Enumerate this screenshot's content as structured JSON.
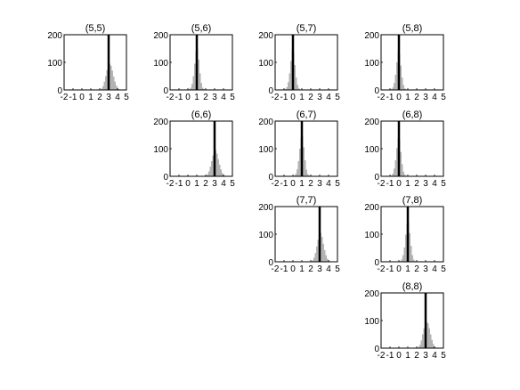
{
  "chart_data": [
    {
      "type": "histogram",
      "title": "(5,5)",
      "xlim": [
        -2,
        5
      ],
      "ylim": [
        0,
        200
      ],
      "xticks": [
        -2,
        -1,
        0,
        1,
        2,
        3,
        4,
        5
      ],
      "yticks": [
        0,
        100,
        200
      ],
      "reference_line": 3.0,
      "bins": [
        [
          2.0,
          2.15,
          2
        ],
        [
          2.15,
          2.3,
          5
        ],
        [
          2.3,
          2.45,
          14
        ],
        [
          2.45,
          2.6,
          30
        ],
        [
          2.6,
          2.75,
          50
        ],
        [
          2.75,
          2.9,
          72
        ],
        [
          2.9,
          3.05,
          88
        ],
        [
          3.05,
          3.2,
          95
        ],
        [
          3.2,
          3.35,
          88
        ],
        [
          3.35,
          3.5,
          70
        ],
        [
          3.5,
          3.65,
          48
        ],
        [
          3.65,
          3.8,
          30
        ],
        [
          3.8,
          3.95,
          16
        ],
        [
          3.95,
          4.1,
          8
        ],
        [
          4.1,
          4.25,
          3
        ]
      ]
    },
    {
      "type": "histogram",
      "title": "(5,6)",
      "xlim": [
        -2,
        5
      ],
      "ylim": [
        0,
        200
      ],
      "xticks": [
        -2,
        -1,
        0,
        1,
        2,
        3,
        4,
        5
      ],
      "yticks": [
        0,
        100,
        200
      ],
      "reference_line": 1.0,
      "bins": [
        [
          0.1,
          0.25,
          3
        ],
        [
          0.25,
          0.4,
          8
        ],
        [
          0.4,
          0.55,
          22
        ],
        [
          0.55,
          0.7,
          50
        ],
        [
          0.7,
          0.85,
          95
        ],
        [
          0.85,
          1.0,
          140
        ],
        [
          1.0,
          1.15,
          150
        ],
        [
          1.15,
          1.3,
          110
        ],
        [
          1.3,
          1.45,
          60
        ],
        [
          1.45,
          1.6,
          25
        ],
        [
          1.6,
          1.75,
          8
        ],
        [
          1.75,
          1.9,
          3
        ]
      ]
    },
    {
      "type": "histogram",
      "title": "(5,7)",
      "xlim": [
        -2,
        5
      ],
      "ylim": [
        0,
        200
      ],
      "xticks": [
        -2,
        -1,
        0,
        1,
        2,
        3,
        4,
        5
      ],
      "yticks": [
        0,
        100,
        200
      ],
      "reference_line": 0.0,
      "bins": [
        [
          -0.9,
          -0.75,
          3
        ],
        [
          -0.75,
          -0.6,
          10
        ],
        [
          -0.6,
          -0.45,
          28
        ],
        [
          -0.45,
          -0.3,
          60
        ],
        [
          -0.3,
          -0.15,
          105
        ],
        [
          -0.15,
          0.0,
          145
        ],
        [
          0.0,
          0.15,
          135
        ],
        [
          0.15,
          0.3,
          90
        ],
        [
          0.3,
          0.45,
          45
        ],
        [
          0.45,
          0.6,
          18
        ],
        [
          0.6,
          0.75,
          6
        ],
        [
          0.75,
          0.9,
          2
        ]
      ]
    },
    {
      "type": "histogram",
      "title": "(5,8)",
      "xlim": [
        -2,
        5
      ],
      "ylim": [
        0,
        200
      ],
      "xticks": [
        -2,
        -1,
        0,
        1,
        2,
        3,
        4,
        5
      ],
      "yticks": [
        0,
        100,
        200
      ],
      "reference_line": 0.0,
      "bins": [
        [
          -0.9,
          -0.75,
          3
        ],
        [
          -0.75,
          -0.6,
          9
        ],
        [
          -0.6,
          -0.45,
          25
        ],
        [
          -0.45,
          -0.3,
          55
        ],
        [
          -0.3,
          -0.15,
          100
        ],
        [
          -0.15,
          0.0,
          140
        ],
        [
          0.0,
          0.15,
          130
        ],
        [
          0.15,
          0.3,
          88
        ],
        [
          0.3,
          0.45,
          45
        ],
        [
          0.45,
          0.6,
          18
        ],
        [
          0.6,
          0.75,
          6
        ],
        [
          0.75,
          0.9,
          2
        ]
      ]
    },
    {
      "type": "histogram",
      "title": "(6,6)",
      "xlim": [
        -2,
        5
      ],
      "ylim": [
        0,
        200
      ],
      "xticks": [
        -2,
        -1,
        0,
        1,
        2,
        3,
        4,
        5
      ],
      "yticks": [
        0,
        100,
        200
      ],
      "reference_line": 3.0,
      "bins": [
        [
          2.0,
          2.15,
          3
        ],
        [
          2.15,
          2.3,
          8
        ],
        [
          2.3,
          2.45,
          18
        ],
        [
          2.45,
          2.6,
          35
        ],
        [
          2.6,
          2.75,
          55
        ],
        [
          2.75,
          2.9,
          75
        ],
        [
          2.9,
          3.05,
          92
        ],
        [
          3.05,
          3.2,
          95
        ],
        [
          3.2,
          3.35,
          82
        ],
        [
          3.35,
          3.5,
          62
        ],
        [
          3.5,
          3.65,
          42
        ],
        [
          3.65,
          3.8,
          25
        ],
        [
          3.8,
          3.95,
          12
        ],
        [
          3.95,
          4.1,
          5
        ],
        [
          4.1,
          4.25,
          2
        ]
      ]
    },
    {
      "type": "histogram",
      "title": "(6,7)",
      "xlim": [
        -2,
        5
      ],
      "ylim": [
        0,
        200
      ],
      "xticks": [
        -2,
        -1,
        0,
        1,
        2,
        3,
        4,
        5
      ],
      "yticks": [
        0,
        100,
        200
      ],
      "reference_line": 1.0,
      "bins": [
        [
          0.1,
          0.25,
          3
        ],
        [
          0.25,
          0.4,
          9
        ],
        [
          0.4,
          0.55,
          25
        ],
        [
          0.55,
          0.7,
          55
        ],
        [
          0.7,
          0.85,
          100
        ],
        [
          0.85,
          1.0,
          140
        ],
        [
          1.0,
          1.15,
          145
        ],
        [
          1.15,
          1.3,
          105
        ],
        [
          1.3,
          1.45,
          58
        ],
        [
          1.45,
          1.6,
          24
        ],
        [
          1.6,
          1.75,
          8
        ],
        [
          1.75,
          1.9,
          3
        ]
      ]
    },
    {
      "type": "histogram",
      "title": "(6,8)",
      "xlim": [
        -2,
        5
      ],
      "ylim": [
        0,
        200
      ],
      "xticks": [
        -2,
        -1,
        0,
        1,
        2,
        3,
        4,
        5
      ],
      "yticks": [
        0,
        100,
        200
      ],
      "reference_line": 0.0,
      "bins": [
        [
          -0.9,
          -0.75,
          3
        ],
        [
          -0.75,
          -0.6,
          10
        ],
        [
          -0.6,
          -0.45,
          28
        ],
        [
          -0.45,
          -0.3,
          58
        ],
        [
          -0.3,
          -0.15,
          102
        ],
        [
          -0.15,
          0.0,
          138
        ],
        [
          0.0,
          0.15,
          132
        ],
        [
          0.15,
          0.3,
          88
        ],
        [
          0.3,
          0.45,
          44
        ],
        [
          0.45,
          0.6,
          17
        ],
        [
          0.6,
          0.75,
          6
        ],
        [
          0.75,
          0.9,
          2
        ]
      ]
    },
    {
      "type": "histogram",
      "title": "(7,7)",
      "xlim": [
        -2,
        5
      ],
      "ylim": [
        0,
        200
      ],
      "xticks": [
        -2,
        -1,
        0,
        1,
        2,
        3,
        4,
        5
      ],
      "yticks": [
        0,
        100,
        200
      ],
      "reference_line": 3.0,
      "bins": [
        [
          2.0,
          2.15,
          2
        ],
        [
          2.15,
          2.3,
          6
        ],
        [
          2.3,
          2.45,
          15
        ],
        [
          2.45,
          2.6,
          32
        ],
        [
          2.6,
          2.75,
          55
        ],
        [
          2.75,
          2.9,
          80
        ],
        [
          2.9,
          3.05,
          100
        ],
        [
          3.05,
          3.2,
          105
        ],
        [
          3.2,
          3.35,
          90
        ],
        [
          3.35,
          3.5,
          65
        ],
        [
          3.5,
          3.65,
          42
        ],
        [
          3.65,
          3.8,
          24
        ],
        [
          3.8,
          3.95,
          11
        ],
        [
          3.95,
          4.1,
          5
        ],
        [
          4.1,
          4.25,
          2
        ]
      ]
    },
    {
      "type": "histogram",
      "title": "(7,8)",
      "xlim": [
        -2,
        5
      ],
      "ylim": [
        0,
        200
      ],
      "xticks": [
        -2,
        -1,
        0,
        1,
        2,
        3,
        4,
        5
      ],
      "yticks": [
        0,
        100,
        200
      ],
      "reference_line": 1.0,
      "bins": [
        [
          0.1,
          0.25,
          3
        ],
        [
          0.25,
          0.4,
          9
        ],
        [
          0.4,
          0.55,
          24
        ],
        [
          0.55,
          0.7,
          52
        ],
        [
          0.7,
          0.85,
          98
        ],
        [
          0.85,
          1.0,
          138
        ],
        [
          1.0,
          1.15,
          142
        ],
        [
          1.15,
          1.3,
          104
        ],
        [
          1.3,
          1.45,
          58
        ],
        [
          1.45,
          1.6,
          24
        ],
        [
          1.6,
          1.75,
          8
        ],
        [
          1.75,
          1.9,
          3
        ]
      ]
    },
    {
      "type": "histogram",
      "title": "(8,8)",
      "xlim": [
        -2,
        5
      ],
      "ylim": [
        0,
        200
      ],
      "xticks": [
        -2,
        -1,
        0,
        1,
        2,
        3,
        4,
        5
      ],
      "yticks": [
        0,
        100,
        200
      ],
      "reference_line": 3.0,
      "bins": [
        [
          2.0,
          2.15,
          2
        ],
        [
          2.15,
          2.3,
          5
        ],
        [
          2.3,
          2.45,
          12
        ],
        [
          2.45,
          2.6,
          28
        ],
        [
          2.6,
          2.75,
          50
        ],
        [
          2.75,
          2.9,
          72
        ],
        [
          2.9,
          3.05,
          88
        ],
        [
          3.05,
          3.2,
          95
        ],
        [
          3.2,
          3.35,
          90
        ],
        [
          3.35,
          3.5,
          72
        ],
        [
          3.5,
          3.65,
          50
        ],
        [
          3.65,
          3.8,
          30
        ],
        [
          3.8,
          3.95,
          15
        ],
        [
          3.95,
          4.1,
          6
        ],
        [
          4.1,
          4.25,
          2
        ]
      ]
    }
  ]
}
